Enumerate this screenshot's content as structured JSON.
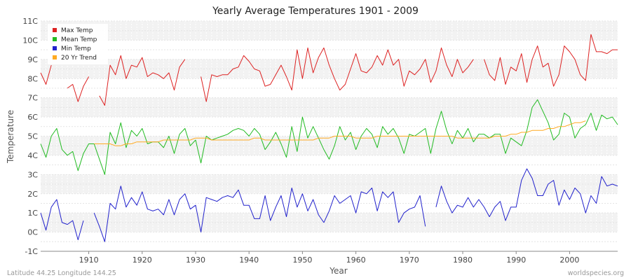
{
  "chart_data": {
    "type": "line",
    "title": "Yearly Average Temperatures 1901 - 2009",
    "xlabel": "Year",
    "ylabel": "Temperature",
    "xlim": [
      1901,
      2009
    ],
    "ylim": [
      -1,
      11
    ],
    "x_ticks": [
      1910,
      1920,
      1930,
      1940,
      1950,
      1960,
      1970,
      1980,
      1990,
      2000
    ],
    "y_ticks": [
      -1,
      0,
      1,
      2,
      3,
      4,
      5,
      6,
      7,
      8,
      9,
      10,
      11
    ],
    "y_tick_labels": [
      "-1C",
      "0C",
      "1C",
      "2C",
      "3C",
      "4C",
      "5C",
      "6C",
      "7C",
      "8C",
      "9C",
      "10C",
      "11C"
    ],
    "legend_position": "top-left",
    "series": [
      {
        "name": "Max Temp",
        "color": "#dd2222",
        "values": [
          8.3,
          7.7,
          8.7,
          null,
          null,
          7.5,
          7.7,
          6.8,
          7.6,
          8.1,
          null,
          7.1,
          6.6,
          8.7,
          8.2,
          9.2,
          8.0,
          8.7,
          8.6,
          9.1,
          8.1,
          8.3,
          8.2,
          8.0,
          8.3,
          7.4,
          8.6,
          9.0,
          null,
          null,
          8.1,
          6.8,
          8.2,
          8.1,
          8.2,
          8.2,
          8.5,
          8.6,
          9.2,
          8.9,
          8.5,
          8.4,
          7.6,
          7.7,
          8.2,
          8.7,
          8.1,
          7.4,
          9.5,
          8.0,
          9.6,
          8.3,
          9.1,
          9.6,
          8.7,
          8.0,
          7.4,
          7.7,
          8.5,
          9.3,
          8.4,
          8.3,
          8.6,
          9.2,
          8.7,
          9.5,
          8.7,
          9.0,
          7.6,
          8.4,
          8.2,
          8.5,
          9.0,
          7.8,
          8.4,
          9.6,
          8.7,
          8.1,
          9.0,
          8.3,
          8.6,
          9.0,
          null,
          9.0,
          8.2,
          7.9,
          9.1,
          7.7,
          8.6,
          8.4,
          9.3,
          7.8,
          9.0,
          9.7,
          8.6,
          8.8,
          7.6,
          8.2,
          9.7,
          9.4,
          9.0,
          8.2,
          7.9,
          10.3,
          9.4,
          9.4,
          9.3,
          9.5,
          9.5
        ]
      },
      {
        "name": "Mean Temp",
        "color": "#22bb22",
        "values": [
          4.6,
          3.9,
          5.0,
          5.4,
          4.3,
          4.0,
          4.2,
          3.2,
          4.1,
          4.6,
          4.6,
          3.8,
          3.0,
          5.2,
          4.6,
          5.7,
          4.4,
          5.3,
          5.0,
          5.4,
          4.6,
          4.7,
          4.7,
          4.4,
          5.0,
          4.1,
          5.1,
          5.4,
          4.5,
          4.8,
          3.6,
          5.0,
          4.8,
          4.9,
          5.0,
          5.1,
          5.3,
          5.4,
          5.3,
          5.0,
          5.4,
          5.1,
          4.3,
          4.7,
          5.2,
          4.6,
          3.9,
          5.5,
          4.2,
          6.0,
          4.9,
          5.5,
          4.9,
          4.3,
          3.8,
          4.5,
          5.5,
          4.8,
          5.2,
          4.3,
          5.0,
          5.4,
          5.1,
          4.4,
          5.5,
          5.1,
          5.4,
          4.9,
          4.1,
          5.1,
          5.0,
          5.2,
          5.4,
          4.1,
          5.4,
          6.3,
          5.3,
          4.6,
          5.3,
          4.9,
          5.4,
          4.7,
          5.1,
          5.1,
          4.9,
          5.1,
          5.1,
          4.1,
          4.9,
          4.7,
          4.5,
          5.3,
          6.5,
          6.9,
          6.3,
          5.7,
          4.8,
          5.1,
          6.2,
          6.0,
          4.9,
          5.4,
          5.6,
          6.2,
          5.3,
          6.1,
          5.9,
          6.0,
          5.6
        ]
      },
      {
        "name": "Min Temp",
        "color": "#2222cc",
        "values": [
          1.0,
          0.1,
          1.3,
          1.7,
          0.5,
          0.4,
          0.6,
          -0.4,
          0.6,
          null,
          1.0,
          0.3,
          -0.5,
          1.5,
          1.2,
          2.4,
          1.3,
          1.8,
          1.4,
          2.1,
          1.2,
          1.1,
          1.2,
          0.9,
          1.7,
          0.9,
          1.7,
          2.0,
          1.2,
          1.4,
          0.0,
          1.8,
          1.7,
          1.6,
          1.8,
          1.9,
          1.8,
          2.2,
          1.4,
          1.4,
          0.7,
          0.7,
          1.9,
          0.6,
          1.3,
          1.9,
          0.8,
          2.3,
          1.3,
          2.0,
          1.1,
          1.7,
          0.9,
          0.5,
          1.1,
          1.9,
          1.5,
          1.7,
          1.9,
          1.0,
          2.1,
          2.0,
          2.3,
          1.1,
          2.1,
          1.8,
          2.1,
          0.5,
          1.0,
          1.2,
          1.3,
          1.9,
          0.3,
          null,
          1.3,
          2.4,
          1.6,
          1.0,
          1.4,
          1.3,
          1.8,
          1.3,
          1.7,
          1.3,
          0.8,
          1.3,
          1.6,
          0.6,
          1.3,
          1.3,
          2.7,
          3.3,
          2.8,
          1.9,
          1.9,
          2.5,
          2.7,
          1.4,
          2.2,
          1.7,
          2.3,
          2.0,
          1.0,
          1.9,
          1.5,
          2.9,
          2.4,
          2.5,
          2.4
        ]
      },
      {
        "name": "20 Yr Trend",
        "color": "#ffaa22",
        "values": [
          null,
          null,
          null,
          null,
          null,
          null,
          null,
          null,
          null,
          null,
          4.6,
          4.6,
          4.6,
          4.6,
          4.5,
          4.5,
          4.6,
          4.6,
          4.7,
          4.7,
          4.7,
          4.7,
          4.7,
          4.8,
          4.8,
          4.8,
          4.8,
          4.8,
          4.8,
          4.9,
          4.9,
          4.9,
          4.8,
          4.8,
          4.8,
          4.8,
          4.8,
          4.8,
          4.8,
          4.8,
          4.9,
          4.9,
          4.8,
          4.8,
          4.8,
          4.8,
          4.8,
          4.8,
          4.8,
          4.8,
          4.8,
          4.8,
          4.9,
          4.9,
          4.9,
          5.0,
          5.0,
          5.0,
          5.0,
          4.9,
          4.9,
          4.9,
          4.9,
          5.0,
          5.0,
          5.0,
          5.0,
          5.0,
          5.0,
          5.0,
          5.0,
          5.0,
          5.0,
          5.0,
          5.0,
          5.0,
          5.0,
          5.0,
          4.9,
          4.9,
          4.9,
          4.9,
          4.9,
          4.9,
          4.9,
          5.0,
          5.0,
          5.0,
          5.1,
          5.1,
          5.2,
          5.2,
          5.3,
          5.3,
          5.3,
          5.4,
          5.4,
          5.5,
          5.5,
          5.6,
          5.7,
          5.7,
          5.8,
          null,
          null,
          null,
          null,
          null,
          null
        ]
      }
    ]
  },
  "footer": {
    "location": "Latitude 44.25 Longitude 144.25",
    "source": "worldspecies.org"
  }
}
